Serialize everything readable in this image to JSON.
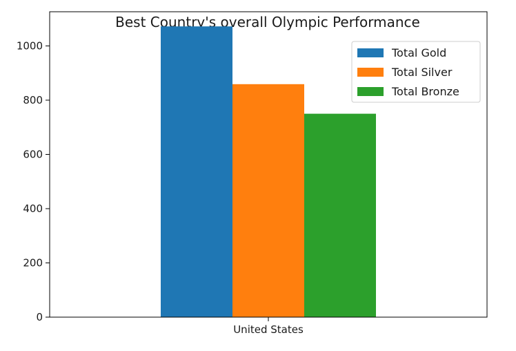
{
  "chart_data": {
    "type": "bar",
    "title": "Best Country's overall Olympic Performance",
    "xlabel": "",
    "ylabel": "",
    "categories": [
      "United States"
    ],
    "series": [
      {
        "name": "Total Gold",
        "values": [
          1072
        ],
        "color": "#1f77b4"
      },
      {
        "name": "Total Silver",
        "values": [
          859
        ],
        "color": "#ff7f0e"
      },
      {
        "name": "Total Bronze",
        "values": [
          750
        ],
        "color": "#2ca02c"
      }
    ],
    "ylim": [
      0,
      1126
    ],
    "yticks": [
      0,
      200,
      400,
      600,
      800,
      1000
    ],
    "legend_position": "top-right",
    "grid": false
  }
}
